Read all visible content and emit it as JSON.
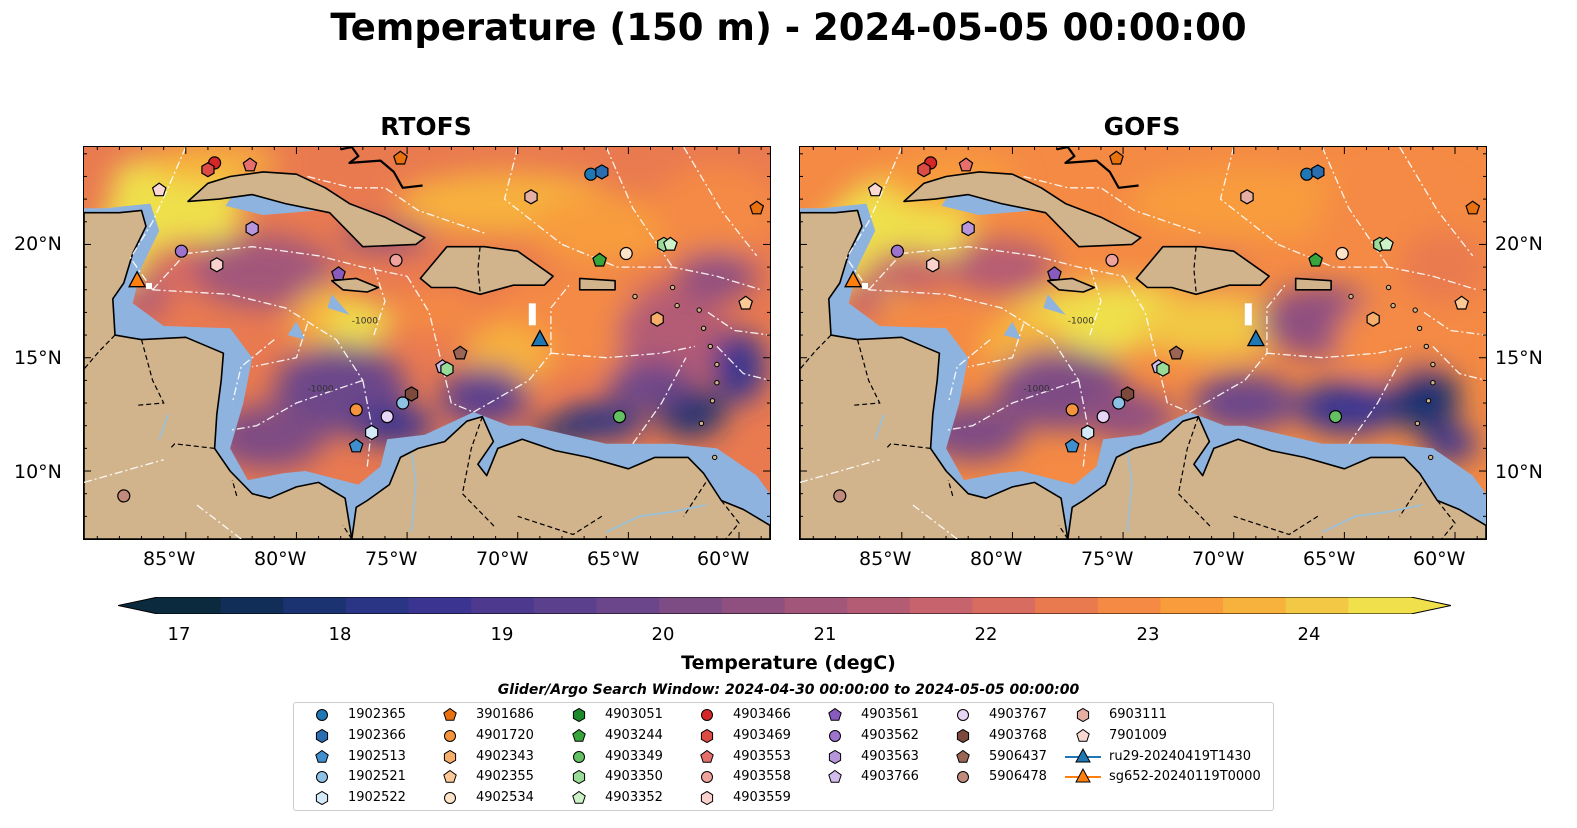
{
  "title": "Temperature (150 m) - 2024-05-05 00:00:00",
  "panels": [
    {
      "title": "RTOFS"
    },
    {
      "title": "GOFS"
    }
  ],
  "axes": {
    "lon_labels": [
      "85°W",
      "80°W",
      "75°W",
      "70°W",
      "65°W",
      "60°W"
    ],
    "lat_labels": [
      "20°N",
      "15°N",
      "10°N"
    ],
    "lon_range": [
      -89.6,
      -58.6
    ],
    "lat_range": [
      7.0,
      24.3
    ]
  },
  "contour_label": "-1000",
  "colorbar": {
    "label": "Temperature (degC)",
    "ticks": [
      "17",
      "18",
      "19",
      "20",
      "21",
      "22",
      "23",
      "24"
    ],
    "min": 16.5,
    "max": 24.5,
    "colors": [
      "#0b2a3e",
      "#112e58",
      "#1c3372",
      "#2a3586",
      "#3b3490",
      "#4d3a8f",
      "#5b418d",
      "#6c468a",
      "#7e4c84",
      "#8f5080",
      "#a2567a",
      "#b45c74",
      "#c6636c",
      "#d86c60",
      "#e97a50",
      "#f48a44",
      "#f89c3c",
      "#f7b13d",
      "#f2c845",
      "#efe04c"
    ],
    "extend": "both",
    "extend_colors": {
      "under": "#0b2a3e",
      "over": "#efe04c"
    }
  },
  "search_window": "Glider/Argo Search Window: 2024-04-30 00:00:00 to 2024-05-05 00:00:00",
  "legend": {
    "columns": [
      [
        {
          "label": "1902365",
          "marker": "circle",
          "color": "#1f77b4"
        },
        {
          "label": "1902366",
          "marker": "hexagon",
          "color": "#2a6db0"
        },
        {
          "label": "1902513",
          "marker": "pentagon",
          "color": "#3f8fcf"
        },
        {
          "label": "1902521",
          "marker": "circle",
          "color": "#8ec1e6"
        },
        {
          "label": "1902522",
          "marker": "hexagon",
          "color": "#d4eaf9"
        }
      ],
      [
        {
          "label": "3901686",
          "marker": "pentagon",
          "color": "#e8700f"
        },
        {
          "label": "4901720",
          "marker": "circle",
          "color": "#f5943d"
        },
        {
          "label": "4902343",
          "marker": "hexagon",
          "color": "#f8ae6b"
        },
        {
          "label": "4902355",
          "marker": "pentagon",
          "color": "#fbc896"
        },
        {
          "label": "4902534",
          "marker": "circle",
          "color": "#fde4c8"
        }
      ],
      [
        {
          "label": "4903051",
          "marker": "hexagon",
          "color": "#1b8a2a"
        },
        {
          "label": "4903244",
          "marker": "pentagon",
          "color": "#37a53a"
        },
        {
          "label": "4903349",
          "marker": "circle",
          "color": "#63c163"
        },
        {
          "label": "4903350",
          "marker": "hexagon",
          "color": "#98dc98"
        },
        {
          "label": "4903352",
          "marker": "pentagon",
          "color": "#cdf2c8"
        }
      ],
      [
        {
          "label": "4903466",
          "marker": "circle",
          "color": "#d62728"
        },
        {
          "label": "4903469",
          "marker": "hexagon",
          "color": "#dd4b45"
        },
        {
          "label": "4903553",
          "marker": "pentagon",
          "color": "#e66f6b"
        },
        {
          "label": "4903558",
          "marker": "circle",
          "color": "#f0a29c"
        },
        {
          "label": "4903559",
          "marker": "hexagon",
          "color": "#f9d2cd"
        }
      ],
      [
        {
          "label": "4903561",
          "marker": "pentagon",
          "color": "#8a5bbf"
        },
        {
          "label": "4903562",
          "marker": "circle",
          "color": "#9d73cc"
        },
        {
          "label": "4903563",
          "marker": "hexagon",
          "color": "#b896dc"
        },
        {
          "label": "4903766",
          "marker": "pentagon",
          "color": "#d3bdec"
        }
      ],
      [
        {
          "label": "4903767",
          "marker": "circle",
          "color": "#e8d6f6"
        },
        {
          "label": "4903768",
          "marker": "hexagon",
          "color": "#7b4a3c"
        },
        {
          "label": "5906437",
          "marker": "pentagon",
          "color": "#9a6555"
        },
        {
          "label": "5906478",
          "marker": "circle",
          "color": "#c08a7c"
        }
      ],
      [
        {
          "label": "6903111",
          "marker": "hexagon",
          "color": "#e5afa4"
        },
        {
          "label": "7901009",
          "marker": "pentagon",
          "color": "#fbd9d2"
        },
        {
          "label": "ru29-20240419T1430",
          "marker": "triangle",
          "color": "#1f77b4",
          "line": true
        },
        {
          "label": "sg652-20240119T0000",
          "marker": "triangle",
          "color": "#ff7f0e",
          "line": true
        }
      ]
    ]
  },
  "glider_positions": [
    {
      "id": "ru29-20240419T1430",
      "lon": -69.0,
      "lat": 15.8
    },
    {
      "id": "sg652-20240119T0000",
      "lon": -87.2,
      "lat": 18.4
    }
  ],
  "argo_positions": [
    {
      "id": "4903466",
      "lon": -83.7,
      "lat": 23.6
    },
    {
      "id": "4903469",
      "lon": -84.0,
      "lat": 23.3
    },
    {
      "id": "4903553",
      "lon": -82.1,
      "lat": 23.5
    },
    {
      "id": "3901686",
      "lon": -75.3,
      "lat": 23.8
    },
    {
      "id": "1902365",
      "lon": -66.7,
      "lat": 23.1
    },
    {
      "id": "1902366",
      "lon": -66.2,
      "lat": 23.2
    },
    {
      "id": "7901009",
      "lon": -86.2,
      "lat": 22.4
    },
    {
      "id": "4903563",
      "lon": -82.0,
      "lat": 20.7
    },
    {
      "id": "4903562",
      "lon": -85.2,
      "lat": 19.7
    },
    {
      "id": "4903559",
      "lon": -83.6,
      "lat": 19.1
    },
    {
      "id": "4903561",
      "lon": -78.1,
      "lat": 18.7
    },
    {
      "id": "4903558",
      "lon": -75.5,
      "lat": 19.3
    },
    {
      "id": "6903111",
      "lon": -69.4,
      "lat": 22.1
    },
    {
      "id": "4903244",
      "lon": -66.3,
      "lat": 19.3
    },
    {
      "id": "4902534",
      "lon": -65.1,
      "lat": 19.6
    },
    {
      "id": "4903350",
      "lon": -63.4,
      "lat": 20.0
    },
    {
      "id": "4903352",
      "lon": -63.1,
      "lat": 20.0
    },
    {
      "id": "3901686",
      "lon": -59.2,
      "lat": 21.6
    },
    {
      "id": "4902355",
      "lon": -59.7,
      "lat": 17.4
    },
    {
      "id": "4902343",
      "lon": -63.7,
      "lat": 16.7
    },
    {
      "id": "5906437",
      "lon": -72.6,
      "lat": 15.2
    },
    {
      "id": "4903766",
      "lon": -73.4,
      "lat": 14.6
    },
    {
      "id": "4903350",
      "lon": -73.2,
      "lat": 14.5
    },
    {
      "id": "4903768",
      "lon": -74.8,
      "lat": 13.4
    },
    {
      "id": "1902521",
      "lon": -75.2,
      "lat": 13.0
    },
    {
      "id": "4901720",
      "lon": -77.3,
      "lat": 12.7
    },
    {
      "id": "4903767",
      "lon": -75.9,
      "lat": 12.4
    },
    {
      "id": "1902522",
      "lon": -76.6,
      "lat": 11.7
    },
    {
      "id": "1902513",
      "lon": -77.3,
      "lat": 11.1
    },
    {
      "id": "4903349",
      "lon": -65.4,
      "lat": 12.4
    },
    {
      "id": "5906478",
      "lon": -87.8,
      "lat": 8.9
    }
  ]
}
